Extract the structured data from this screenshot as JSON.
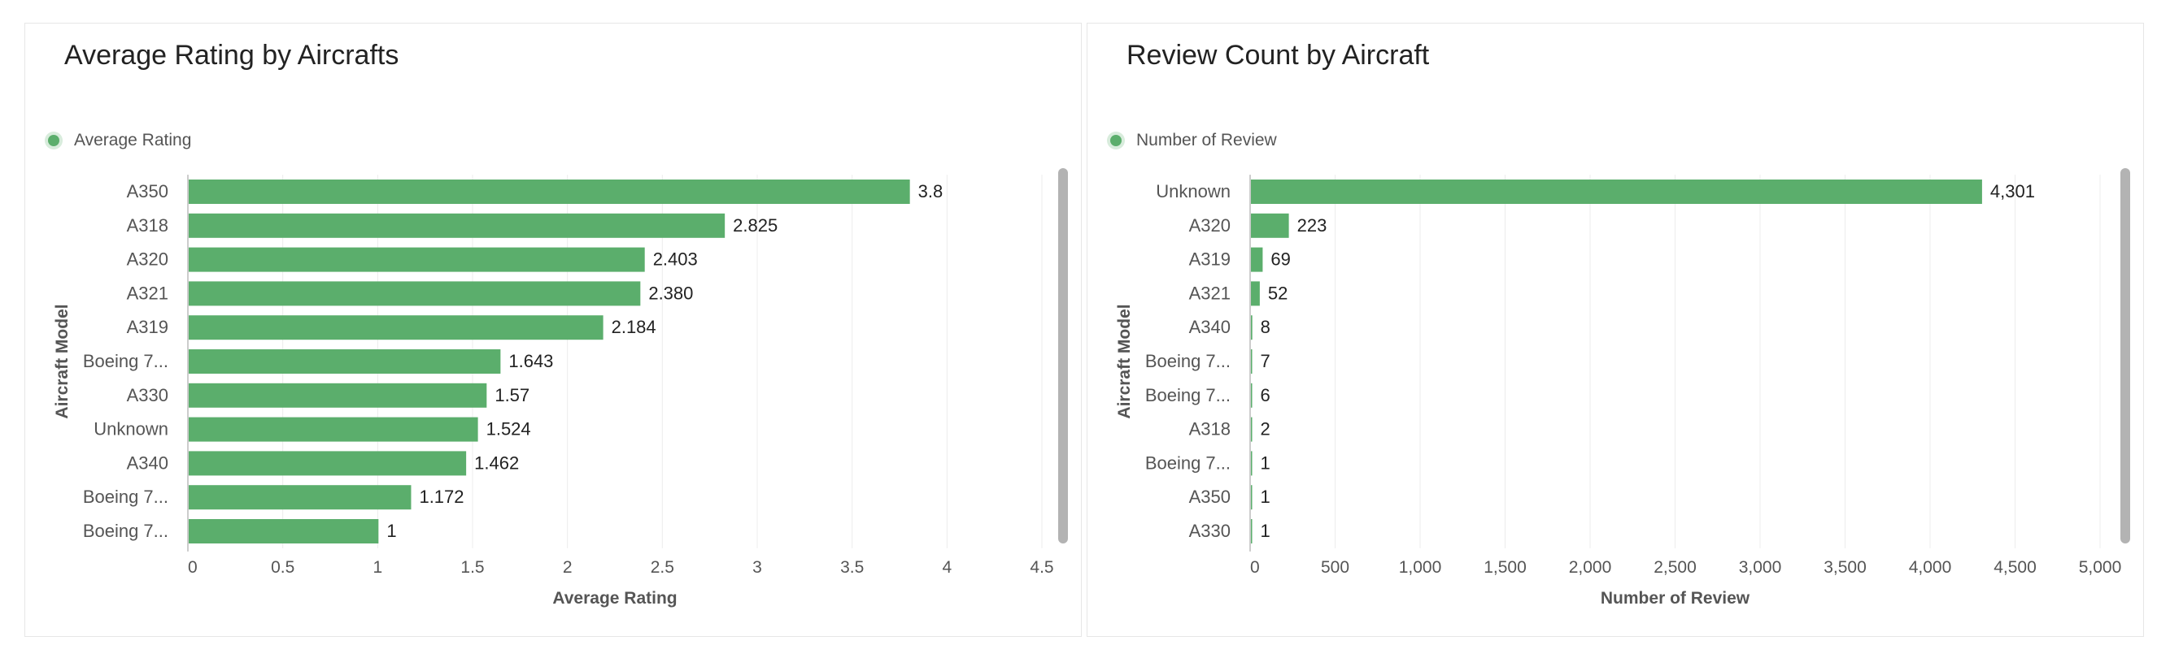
{
  "chart_data": [
    {
      "type": "bar",
      "orientation": "horizontal",
      "title": "Average Rating by Aircrafts",
      "xlabel": "Average Rating",
      "ylabel": "Aircraft Model",
      "legend": "top-left",
      "grid": true,
      "xlim": [
        0,
        4.5
      ],
      "xticks": [
        "0",
        "0.5",
        "1",
        "1.5",
        "2",
        "2.5",
        "3",
        "3.5",
        "4",
        "4.5"
      ],
      "xtick_values": [
        0,
        0.5,
        1,
        1.5,
        2,
        2.5,
        3,
        3.5,
        4,
        4.5
      ],
      "categories": [
        "A350",
        "A318",
        "A320",
        "A321",
        "A319",
        "Boeing 7...",
        "A330",
        "Unknown",
        "A340",
        "Boeing 7...",
        "Boeing 7..."
      ],
      "series": [
        {
          "name": "Average Rating",
          "color": "#5bae6c",
          "values": [
            3.8,
            2.825,
            2.403,
            2.38,
            2.184,
            1.643,
            1.57,
            1.524,
            1.462,
            1.172,
            1
          ],
          "labels": [
            "3.8",
            "2.825",
            "2.403",
            "2.380",
            "2.184",
            "1.643",
            "1.57",
            "1.524",
            "1.462",
            "1.172",
            "1"
          ]
        }
      ]
    },
    {
      "type": "bar",
      "orientation": "horizontal",
      "title": "Review Count by Aircraft",
      "xlabel": "Number of Review",
      "ylabel": "Aircraft Model",
      "legend": "top-left",
      "grid": true,
      "xlim": [
        0,
        5000
      ],
      "xticks": [
        "0",
        "500",
        "1,000",
        "1,500",
        "2,000",
        "2,500",
        "3,000",
        "3,500",
        "4,000",
        "4,500",
        "5,000"
      ],
      "xtick_values": [
        0,
        500,
        1000,
        1500,
        2000,
        2500,
        3000,
        3500,
        4000,
        4500,
        5000
      ],
      "categories": [
        "Unknown",
        "A320",
        "A319",
        "A321",
        "A340",
        "Boeing 7...",
        "Boeing 7...",
        "A318",
        "Boeing 7...",
        "A350",
        "A330"
      ],
      "series": [
        {
          "name": "Number of Review",
          "color": "#5bae6c",
          "values": [
            4301,
            223,
            69,
            52,
            8,
            7,
            6,
            2,
            1,
            1,
            1
          ],
          "labels": [
            "4,301",
            "223",
            "69",
            "52",
            "8",
            "7",
            "6",
            "2",
            "1",
            "1",
            "1"
          ]
        }
      ]
    }
  ]
}
